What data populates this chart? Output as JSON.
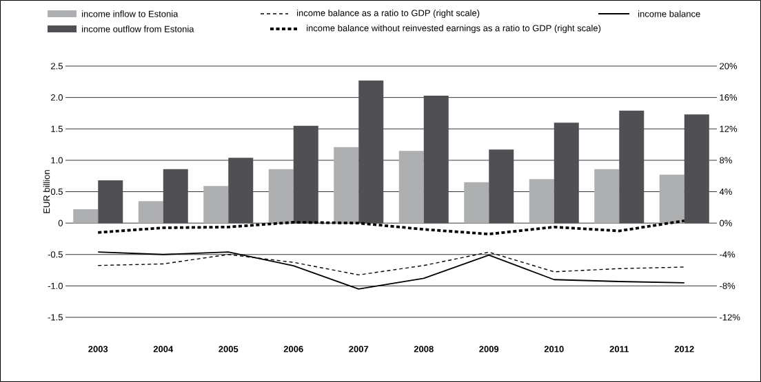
{
  "chart_data": {
    "type": "bar",
    "ylabel": "EUR billion",
    "categories": [
      "2003",
      "2004",
      "2005",
      "2006",
      "2007",
      "2008",
      "2009",
      "2010",
      "2011",
      "2012"
    ],
    "series": [
      {
        "name": "income inflow to Estonia",
        "color": "#aeafb1",
        "values": [
          0.22,
          0.35,
          0.59,
          0.86,
          1.21,
          1.15,
          0.65,
          0.7,
          0.86,
          0.77
        ]
      },
      {
        "name": "income outflow from Estonia",
        "color": "#504f54",
        "values": [
          0.68,
          0.86,
          1.04,
          1.55,
          2.27,
          2.03,
          1.17,
          1.6,
          1.79,
          1.73
        ]
      },
      {
        "name": "income balance as a ratio to GDP (right scale)",
        "type": "line",
        "axis": "y2",
        "line_style": "dashed",
        "color": "#000000",
        "values": [
          -5.4,
          -5.2,
          -4.0,
          -5.0,
          -6.6,
          -5.4,
          -3.7,
          -6.2,
          -5.8,
          -5.6
        ]
      },
      {
        "name": "income balance without reinvested earnings as a ratio to GDP (right scale)",
        "type": "line",
        "axis": "y2",
        "line_style": "dotted",
        "color": "#000000",
        "values": [
          -1.2,
          -0.6,
          -0.5,
          0.1,
          0.0,
          -0.8,
          -1.4,
          -0.5,
          -1.0,
          0.3
        ]
      },
      {
        "name": "income balance",
        "type": "line",
        "line_style": "solid",
        "color": "#000000",
        "values": [
          -0.46,
          -0.5,
          -0.46,
          -0.68,
          -1.05,
          -0.88,
          -0.51,
          -0.9,
          -0.93,
          -0.95
        ]
      }
    ],
    "ylim": [
      -1.5,
      2.5
    ],
    "yticks": [
      {
        "value": -1.5,
        "label": "-1.5"
      },
      {
        "value": -1.0,
        "label": "-1.0"
      },
      {
        "value": -0.5,
        "label": "-0.5"
      },
      {
        "value": 0,
        "label": "0"
      },
      {
        "value": 0.5,
        "label": "0.5"
      },
      {
        "value": 1.0,
        "label": "1.0"
      },
      {
        "value": 1.5,
        "label": "1.5"
      },
      {
        "value": 2.0,
        "label": "2.0"
      },
      {
        "value": 2.5,
        "label": "2.5"
      }
    ],
    "y2lim": [
      -12,
      20
    ],
    "y2ticks": [
      {
        "value": -12,
        "label": "-12%"
      },
      {
        "value": -8,
        "label": "-8%"
      },
      {
        "value": -4,
        "label": "-4%"
      },
      {
        "value": 0,
        "label": "0%"
      },
      {
        "value": 4,
        "label": "4%"
      },
      {
        "value": 8,
        "label": "8%"
      },
      {
        "value": 12,
        "label": "12%"
      },
      {
        "value": 16,
        "label": "16%"
      },
      {
        "value": 20,
        "label": "20%"
      }
    ],
    "grid": "y",
    "legend": "top"
  }
}
